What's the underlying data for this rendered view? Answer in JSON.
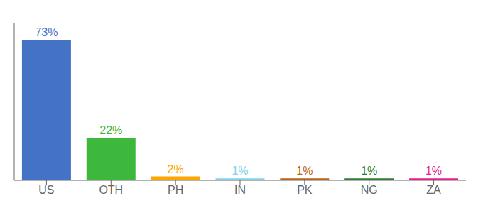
{
  "chart_data": {
    "type": "bar",
    "categories": [
      "US",
      "OTH",
      "PH",
      "IN",
      "PK",
      "NG",
      "ZA"
    ],
    "values": [
      73,
      22,
      2,
      1,
      1,
      1,
      1
    ],
    "value_labels": [
      "73%",
      "22%",
      "2%",
      "1%",
      "1%",
      "1%",
      "1%"
    ],
    "colors": [
      "#4472c4",
      "#3db83d",
      "#ffa500",
      "#87ceeb",
      "#b8621a",
      "#2e7d32",
      "#e91e8c"
    ],
    "ylim": [
      0,
      82
    ],
    "data_labels": true,
    "tick_labels": "x",
    "grid": false
  }
}
